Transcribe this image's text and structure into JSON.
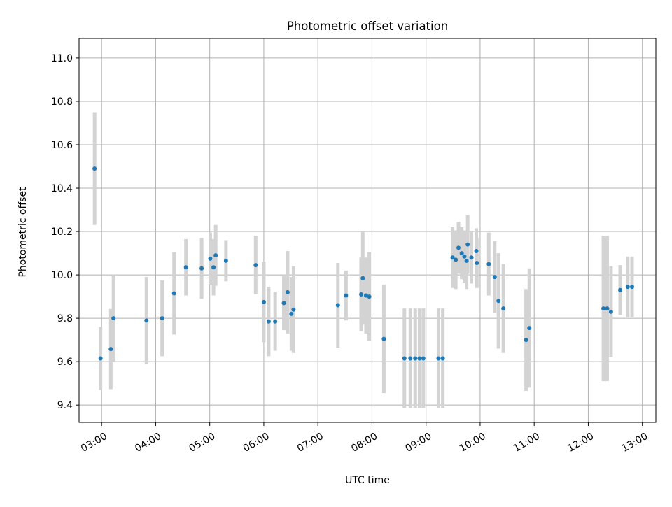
{
  "chart_data": {
    "type": "scatter",
    "title": "Photometric offset variation",
    "xlabel": "UTC time",
    "ylabel": "Photometric offset",
    "grid": true,
    "legend": "none",
    "x_unit": "UTC hours (decimal)",
    "xlim": [
      2.5833,
      13.25
    ],
    "ylim": [
      9.32,
      11.09
    ],
    "x_ticks": [
      {
        "value": 3,
        "label": "03:00"
      },
      {
        "value": 4,
        "label": "04:00"
      },
      {
        "value": 5,
        "label": "05:00"
      },
      {
        "value": 6,
        "label": "06:00"
      },
      {
        "value": 7,
        "label": "07:00"
      },
      {
        "value": 8,
        "label": "08:00"
      },
      {
        "value": 9,
        "label": "09:00"
      },
      {
        "value": 10,
        "label": "10:00"
      },
      {
        "value": 11,
        "label": "11:00"
      },
      {
        "value": 12,
        "label": "12:00"
      },
      {
        "value": 13,
        "label": "13:00"
      }
    ],
    "y_ticks": [
      {
        "value": 9.4,
        "label": "9.4"
      },
      {
        "value": 9.6,
        "label": "9.6"
      },
      {
        "value": 9.8,
        "label": "9.8"
      },
      {
        "value": 10.0,
        "label": "10.0"
      },
      {
        "value": 10.2,
        "label": "10.2"
      },
      {
        "value": 10.4,
        "label": "10.4"
      },
      {
        "value": 10.6,
        "label": "10.6"
      },
      {
        "value": 10.8,
        "label": "10.8"
      },
      {
        "value": 11.0,
        "label": "11.0"
      }
    ],
    "colors": {
      "point": "#1f77b4",
      "errorbar": "#d3d3d3"
    },
    "points": [
      {
        "x": 2.87,
        "y": 10.49,
        "err": 0.26
      },
      {
        "x": 2.98,
        "y": 9.615,
        "err": 0.145
      },
      {
        "x": 3.17,
        "y": 9.658,
        "err": 0.185
      },
      {
        "x": 3.22,
        "y": 9.8,
        "err": 0.2
      },
      {
        "x": 3.83,
        "y": 9.79,
        "err": 0.2
      },
      {
        "x": 4.12,
        "y": 9.8,
        "err": 0.175
      },
      {
        "x": 4.34,
        "y": 9.915,
        "err": 0.19
      },
      {
        "x": 4.56,
        "y": 10.035,
        "err": 0.13
      },
      {
        "x": 4.85,
        "y": 10.03,
        "err": 0.14
      },
      {
        "x": 5.01,
        "y": 10.075,
        "err": 0.12
      },
      {
        "x": 5.07,
        "y": 10.035,
        "err": 0.13
      },
      {
        "x": 5.11,
        "y": 10.09,
        "err": 0.14
      },
      {
        "x": 5.3,
        "y": 10.065,
        "err": 0.095
      },
      {
        "x": 5.85,
        "y": 10.045,
        "err": 0.135
      },
      {
        "x": 6.0,
        "y": 9.875,
        "err": 0.185
      },
      {
        "x": 6.09,
        "y": 9.785,
        "err": 0.16
      },
      {
        "x": 6.21,
        "y": 9.785,
        "err": 0.135
      },
      {
        "x": 6.37,
        "y": 9.87,
        "err": 0.125
      },
      {
        "x": 6.44,
        "y": 9.92,
        "err": 0.19
      },
      {
        "x": 6.51,
        "y": 9.82,
        "err": 0.17
      },
      {
        "x": 6.55,
        "y": 9.84,
        "err": 0.2
      },
      {
        "x": 7.37,
        "y": 9.86,
        "err": 0.195
      },
      {
        "x": 7.52,
        "y": 9.905,
        "err": 0.115
      },
      {
        "x": 7.8,
        "y": 9.91,
        "err": 0.17
      },
      {
        "x": 7.83,
        "y": 9.985,
        "err": 0.215
      },
      {
        "x": 7.89,
        "y": 9.905,
        "err": 0.175
      },
      {
        "x": 7.95,
        "y": 9.9,
        "err": 0.205
      },
      {
        "x": 8.22,
        "y": 9.705,
        "err": 0.25
      },
      {
        "x": 8.6,
        "y": 9.615,
        "err": 0.23
      },
      {
        "x": 8.71,
        "y": 9.615,
        "err": 0.23
      },
      {
        "x": 8.8,
        "y": 9.615,
        "err": 0.23
      },
      {
        "x": 8.88,
        "y": 9.615,
        "err": 0.23
      },
      {
        "x": 8.95,
        "y": 9.615,
        "err": 0.23
      },
      {
        "x": 9.23,
        "y": 9.615,
        "err": 0.23
      },
      {
        "x": 9.31,
        "y": 9.615,
        "err": 0.23
      },
      {
        "x": 9.49,
        "y": 10.08,
        "err": 0.14
      },
      {
        "x": 9.55,
        "y": 10.07,
        "err": 0.135
      },
      {
        "x": 9.6,
        "y": 10.125,
        "err": 0.12
      },
      {
        "x": 9.66,
        "y": 10.1,
        "err": 0.12
      },
      {
        "x": 9.71,
        "y": 10.085,
        "err": 0.12
      },
      {
        "x": 9.75,
        "y": 10.065,
        "err": 0.13
      },
      {
        "x": 9.77,
        "y": 10.14,
        "err": 0.135
      },
      {
        "x": 9.84,
        "y": 10.08,
        "err": 0.12
      },
      {
        "x": 9.93,
        "y": 10.11,
        "err": 0.105
      },
      {
        "x": 9.94,
        "y": 10.055,
        "err": 0.115
      },
      {
        "x": 10.16,
        "y": 10.05,
        "err": 0.145
      },
      {
        "x": 10.27,
        "y": 9.99,
        "err": 0.165
      },
      {
        "x": 10.34,
        "y": 9.88,
        "err": 0.22
      },
      {
        "x": 10.43,
        "y": 9.845,
        "err": 0.205
      },
      {
        "x": 10.85,
        "y": 9.7,
        "err": 0.235
      },
      {
        "x": 10.91,
        "y": 9.755,
        "err": 0.275
      },
      {
        "x": 12.28,
        "y": 9.845,
        "err": 0.335
      },
      {
        "x": 12.35,
        "y": 9.845,
        "err": 0.335
      },
      {
        "x": 12.42,
        "y": 9.83,
        "err": 0.21
      },
      {
        "x": 12.59,
        "y": 9.93,
        "err": 0.115
      },
      {
        "x": 12.73,
        "y": 9.945,
        "err": 0.14
      },
      {
        "x": 12.81,
        "y": 9.945,
        "err": 0.14
      }
    ]
  }
}
